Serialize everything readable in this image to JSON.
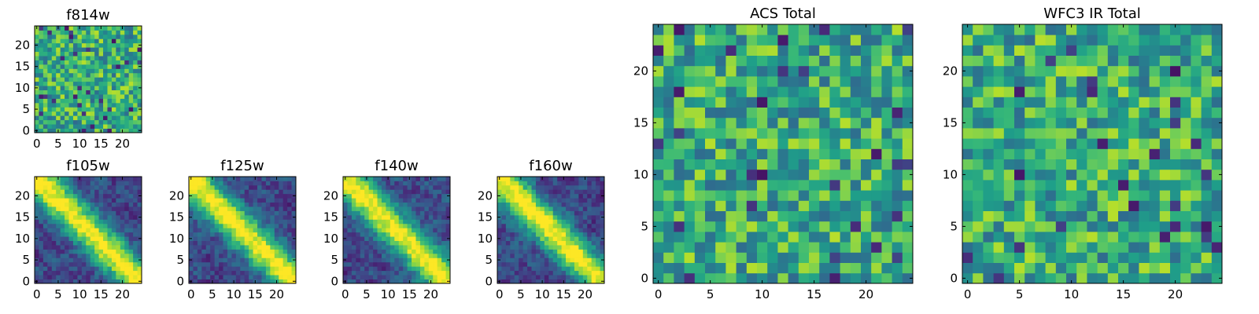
{
  "chart_data": [
    {
      "type": "heatmap",
      "title": "f814w",
      "xticks": [
        "0",
        "5",
        "10",
        "15",
        "20"
      ],
      "yticks": [
        "0",
        "5",
        "10",
        "15",
        "20"
      ],
      "grid_size": 25,
      "xlim": [
        -0.5,
        24.5
      ],
      "ylim": [
        -0.5,
        24.5
      ],
      "pattern": "noise",
      "colormap": "viridis",
      "grid": false,
      "seed": 11
    },
    {
      "type": "heatmap",
      "title": "f105w",
      "xticks": [
        "0",
        "5",
        "10",
        "15",
        "20"
      ],
      "yticks": [
        "0",
        "5",
        "10",
        "15",
        "20"
      ],
      "grid_size": 25,
      "xlim": [
        -0.5,
        24.5
      ],
      "ylim": [
        -0.5,
        24.5
      ],
      "pattern": "diagonal-band",
      "colormap": "viridis",
      "grid": false,
      "seed": 23
    },
    {
      "type": "heatmap",
      "title": "f125w",
      "xticks": [
        "0",
        "5",
        "10",
        "15",
        "20"
      ],
      "yticks": [
        "0",
        "5",
        "10",
        "15",
        "20"
      ],
      "grid_size": 25,
      "xlim": [
        -0.5,
        24.5
      ],
      "ylim": [
        -0.5,
        24.5
      ],
      "pattern": "diagonal-band",
      "colormap": "viridis",
      "grid": false,
      "seed": 37
    },
    {
      "type": "heatmap",
      "title": "f140w",
      "xticks": [
        "0",
        "5",
        "10",
        "15",
        "20"
      ],
      "yticks": [
        "0",
        "5",
        "10",
        "15",
        "20"
      ],
      "grid_size": 25,
      "xlim": [
        -0.5,
        24.5
      ],
      "ylim": [
        -0.5,
        24.5
      ],
      "pattern": "diagonal-band",
      "colormap": "viridis",
      "grid": false,
      "seed": 41
    },
    {
      "type": "heatmap",
      "title": "f160w",
      "xticks": [
        "0",
        "5",
        "10",
        "15",
        "20"
      ],
      "yticks": [
        "0",
        "5",
        "10",
        "15",
        "20"
      ],
      "grid_size": 25,
      "xlim": [
        -0.5,
        24.5
      ],
      "ylim": [
        -0.5,
        24.5
      ],
      "pattern": "diagonal-band",
      "colormap": "viridis",
      "grid": false,
      "seed": 53
    },
    {
      "type": "heatmap",
      "title": "ACS Total",
      "xticks": [
        "0",
        "5",
        "10",
        "15",
        "20"
      ],
      "yticks": [
        "0",
        "5",
        "10",
        "15",
        "20"
      ],
      "grid_size": 25,
      "xlim": [
        -0.5,
        24.5
      ],
      "ylim": [
        -0.5,
        24.5
      ],
      "pattern": "noise",
      "colormap": "viridis",
      "grid": false,
      "seed": 67
    },
    {
      "type": "heatmap",
      "title": "WFC3 IR Total",
      "xticks": [
        "0",
        "5",
        "10",
        "15",
        "20"
      ],
      "yticks": [
        "0",
        "5",
        "10",
        "15",
        "20"
      ],
      "grid_size": 25,
      "xlim": [
        -0.5,
        24.5
      ],
      "ylim": [
        -0.5,
        24.5
      ],
      "pattern": "noise",
      "colormap": "viridis",
      "grid": false,
      "seed": 79
    }
  ]
}
